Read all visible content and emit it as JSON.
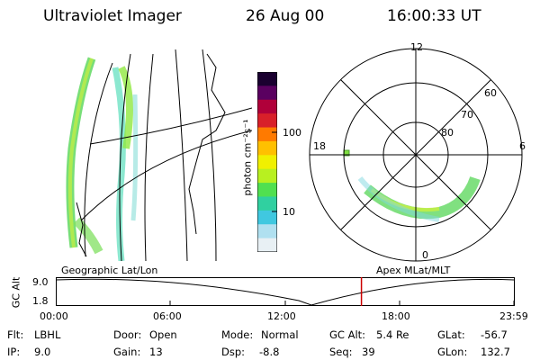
{
  "header": {
    "instrument": "Ultraviolet Imager",
    "date": "26 Aug 00",
    "time": "16:00:33 UT"
  },
  "colorbar": {
    "unit_label": "photon cm⁻²s⁻¹",
    "ticks": [
      "100",
      "10"
    ],
    "colors": [
      "#1a0030",
      "#5a0060",
      "#b0003a",
      "#d8202a",
      "#ff7a00",
      "#ffc000",
      "#f0f000",
      "#b8f020",
      "#50e050",
      "#30d0a0",
      "#40c8e0",
      "#b0e0f0",
      "#e8f0f4"
    ]
  },
  "polar_plot": {
    "hour_labels": [
      "12",
      "18",
      "6",
      "0"
    ],
    "lat_labels": [
      "60",
      "70",
      "80"
    ]
  },
  "map_panel": {
    "caption": "Geographic Lat/Lon"
  },
  "polar_caption": "Apex MLat/MLT",
  "orbit_plot": {
    "ylabel": "GC Alt",
    "y_ticks": [
      "9.0",
      "1.8"
    ],
    "x_ticks": [
      "00:00",
      "06:00",
      "12:00",
      "18:00",
      "23:59"
    ],
    "current_time_marker_color": "#cc0000",
    "current_time_fraction": 0.6672
  },
  "info": {
    "flt_label": "Flt:",
    "flt_value": "LBHL",
    "ip_label": "IP:",
    "ip_value": "9.0",
    "door_label": "Door:",
    "door_value": "Open",
    "gain_label": "Gain:",
    "gain_value": "13",
    "mode_label": "Mode:",
    "mode_value": "Normal",
    "dsp_label": "Dsp:",
    "dsp_value": "-8.8",
    "gcalt_label": "GC Alt:",
    "gcalt_value": "5.4 Re",
    "seq_label": "Seq:",
    "seq_value": "39",
    "glat_label": "GLat:",
    "glat_value": "-56.7",
    "glon_label": "GLon:",
    "glon_value": "132.7"
  }
}
